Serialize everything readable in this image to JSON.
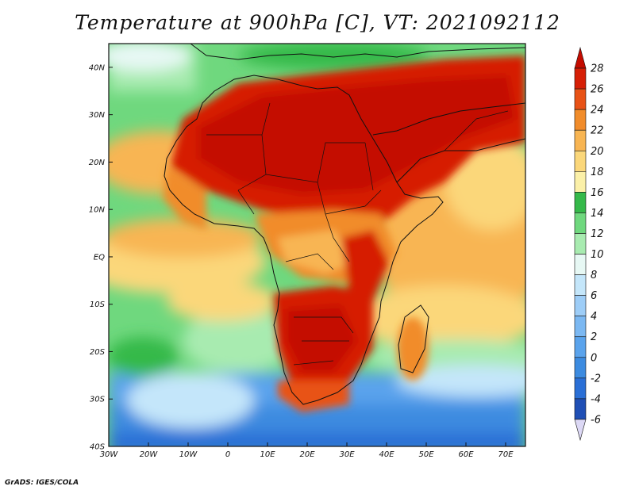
{
  "title": "Temperature at 900hPa [C], VT: 2021092112",
  "credit": "GrADS: IGES/COLA",
  "map": {
    "lon_range": [
      -30,
      75
    ],
    "lat_range": [
      -40,
      45
    ],
    "lon_labels": [
      "30W",
      "20W",
      "10W",
      "0",
      "10E",
      "20E",
      "30E",
      "40E",
      "50E",
      "60E",
      "70E"
    ],
    "lat_labels": [
      "40S",
      "30S",
      "20S",
      "10S",
      "EQ",
      "10N",
      "20N",
      "30N",
      "40N"
    ]
  },
  "colorbar": {
    "levels": [
      "-6",
      "-4",
      "-2",
      "0",
      "2",
      "4",
      "6",
      "8",
      "10",
      "12",
      "14",
      "16",
      "18",
      "20",
      "22",
      "24",
      "26",
      "28"
    ],
    "colors": [
      "#1c2f8c",
      "#1f4fb5",
      "#2a6fd6",
      "#3c8be0",
      "#5aa3ec",
      "#7bb8f2",
      "#9dcdf7",
      "#c4e6fa",
      "#e7f8f4",
      "#a8ebb0",
      "#6fd87e",
      "#35b94a",
      "#fbf0a8",
      "#fbd77a",
      "#f8b552",
      "#f18c2a",
      "#e85216",
      "#d61f06",
      "#c40c00"
    ]
  }
}
